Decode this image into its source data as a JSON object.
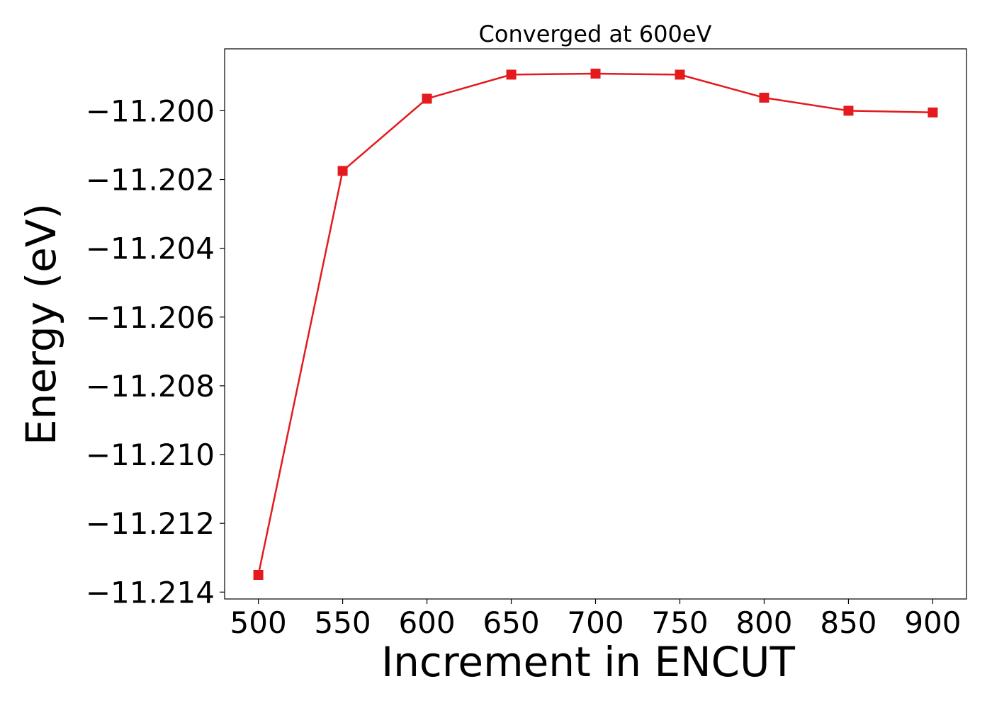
{
  "chart_data": {
    "type": "line",
    "title": "Converged at 600eV",
    "xlabel": "Increment in ENCUT",
    "ylabel": "Energy (eV)",
    "x": [
      500,
      550,
      600,
      650,
      700,
      750,
      800,
      850,
      900
    ],
    "series": [
      {
        "values": [
          -11.2135,
          -11.20175,
          -11.19965,
          -11.19895,
          -11.19892,
          -11.19895,
          -11.19962,
          -11.2,
          -11.20005
        ],
        "color": "#e41a1c",
        "marker": "square"
      }
    ],
    "xticks": [
      500,
      550,
      600,
      650,
      700,
      750,
      800,
      850,
      900
    ],
    "xtick_labels": [
      "500",
      "550",
      "600",
      "650",
      "700",
      "750",
      "800",
      "850",
      "900"
    ],
    "yticks": [
      -11.214,
      -11.212,
      -11.21,
      -11.208,
      -11.206,
      -11.204,
      -11.202,
      -11.2
    ],
    "ytick_labels": [
      "−11.214",
      "−11.212",
      "−11.210",
      "−11.208",
      "−11.206",
      "−11.204",
      "−11.202",
      "−11.200"
    ],
    "xlim": [
      480,
      920
    ],
    "ylim": [
      -11.2142,
      -11.1982
    ],
    "grid": false,
    "legend": "none"
  }
}
